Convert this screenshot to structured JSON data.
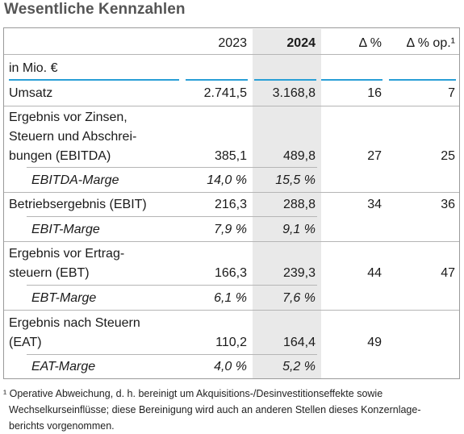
{
  "title": "Wesentliche Kennzahlen",
  "header": {
    "c1": "2023",
    "c2": "2024",
    "c3": "Δ %",
    "c4": "Δ % op.¹"
  },
  "unit": "in Mio. €",
  "rows": [
    {
      "label": "Umsatz",
      "v2023": "2.741,5",
      "v2024": "3.168,8",
      "delta": "16",
      "delta_op": "7"
    },
    {
      "label": "Ergebnis vor Zinsen,\nSteuern und Abschrei-\nbungen (EBITDA)",
      "v2023": "385,1",
      "v2024": "489,8",
      "delta": "27",
      "delta_op": "25"
    },
    {
      "label": "EBITDA-Marge",
      "v2023": "14,0 %",
      "v2024": "15,5 %"
    },
    {
      "label": "Betriebsergebnis (EBIT)",
      "v2023": "216,3",
      "v2024": "288,8",
      "delta": "34",
      "delta_op": "36"
    },
    {
      "label": "EBIT-Marge",
      "v2023": "7,9 %",
      "v2024": "9,1 %"
    },
    {
      "label": "Ergebnis vor Ertrag-\nsteuern (EBT)",
      "v2023": "166,3",
      "v2024": "239,3",
      "delta": "44",
      "delta_op": "47"
    },
    {
      "label": "EBT-Marge",
      "v2023": "6,1 %",
      "v2024": "7,6 %"
    },
    {
      "label": "Ergebnis nach Steuern\n(EAT)",
      "v2023": "110,2",
      "v2024": "164,4",
      "delta": "49",
      "delta_op": ""
    },
    {
      "label": "EAT-Marge",
      "v2023": "4,0 %",
      "v2024": "5,2 %"
    }
  ],
  "footnote": {
    "line1": "¹ Operative Abweichung, d. h. bereinigt um Akquisitions-/Desinvestitionseffekte sowie",
    "line2": "Wechselkurseinflüsse; diese Bereinigung wird auch an anderen Stellen dieses Konzernlage-",
    "line3": "berichts vorgenommen."
  },
  "colors": {
    "accent_line": "#2a9fd6",
    "highlight_column": "#e9e9e9",
    "title": "#555555"
  }
}
